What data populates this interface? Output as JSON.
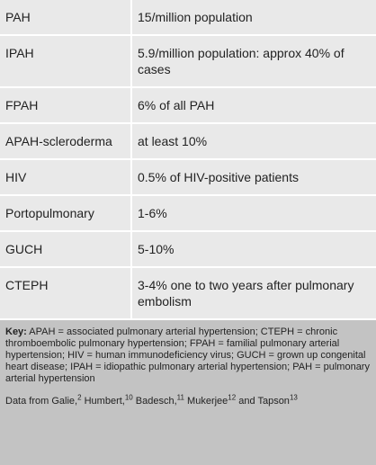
{
  "table": {
    "rows": [
      [
        "PAH",
        "15/million population"
      ],
      [
        "IPAH",
        "5.9/million population: approx 40% of cases"
      ],
      [
        "FPAH",
        "6% of all PAH"
      ],
      [
        "APAH-scleroderma",
        "at least 10%"
      ],
      [
        "HIV",
        "0.5% of HIV-positive patients"
      ],
      [
        "Portopulmonary",
        "1-6%"
      ],
      [
        "GUCH",
        "5-10%"
      ],
      [
        "CTEPH",
        "3-4% one to two years after pulmonary embolism"
      ]
    ]
  },
  "key": {
    "label": "Key:",
    "text": "APAH = associated pulmonary arterial hypertension; CTEPH = chronic thromboembolic pulmonary hypertension; FPAH = familial pulmonary arterial hypertension; HIV = human immunodeficiency virus; GUCH = grown up congenital heart disease; IPAH = idiopathic pulmonary arterial hypertension; PAH = pulmonary arterial hypertension"
  },
  "source": {
    "parts": [
      {
        "text": "Data from Galie,",
        "sup": "2"
      },
      {
        "text": " Humbert,",
        "sup": "10"
      },
      {
        "text": " Badesch,",
        "sup": "11"
      },
      {
        "text": " Mukerjee",
        "sup": "12"
      },
      {
        "text": " and Tapson",
        "sup": "13"
      }
    ]
  }
}
